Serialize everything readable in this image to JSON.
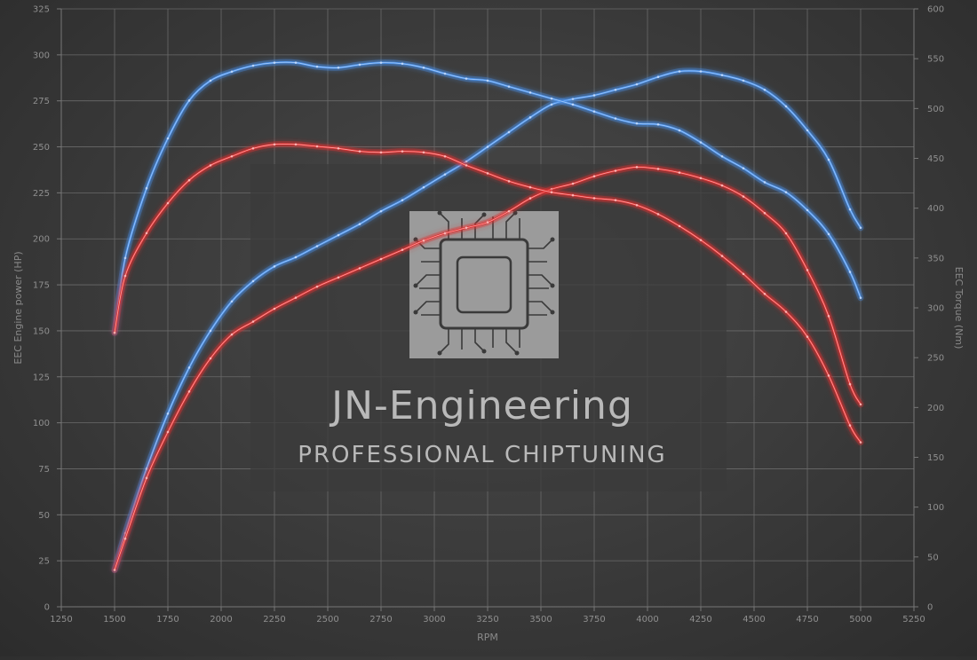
{
  "watermark": {
    "title": "JN-Engineering",
    "subtitle": "PROFESSIONAL CHIPTUNING"
  },
  "chart_data": {
    "type": "line",
    "title": "",
    "xlabel": "RPM",
    "ylabel_left": "EEC Engine power (HP)",
    "ylabel_right": "EEC Torque (Nm)",
    "xlim": [
      1250,
      5250
    ],
    "ylim_left": [
      0,
      325
    ],
    "ylim_right": [
      0,
      600
    ],
    "x_ticks": [
      1250,
      1500,
      1750,
      2000,
      2250,
      2500,
      2750,
      3000,
      3250,
      3500,
      3750,
      4000,
      4250,
      4500,
      4750,
      5000,
      5250
    ],
    "y_ticks_left": [
      0,
      25,
      50,
      75,
      100,
      125,
      150,
      175,
      200,
      225,
      250,
      275,
      300,
      325
    ],
    "y_ticks_right": [
      0,
      50,
      100,
      150,
      200,
      250,
      300,
      350,
      400,
      450,
      500,
      550,
      600
    ],
    "grid": true,
    "series": [
      {
        "axis": "left",
        "color": "#4a90e8",
        "x": [
          1500,
          1550,
          1650,
          1750,
          1850,
          1950,
          2050,
          2150,
          2250,
          2350,
          2450,
          2550,
          2650,
          2750,
          2850,
          2950,
          3050,
          3150,
          3250,
          3350,
          3450,
          3550,
          3650,
          3750,
          3850,
          3950,
          4050,
          4150,
          4250,
          4350,
          4450,
          4550,
          4650,
          4750,
          4850,
          4950,
          5000
        ],
        "y": [
          20,
          40,
          75,
          105,
          130,
          150,
          166,
          177,
          185,
          190,
          196,
          202,
          208,
          215,
          221,
          228,
          235,
          242,
          250,
          258,
          266,
          273,
          276,
          278,
          281,
          284,
          288,
          291,
          291,
          289,
          286,
          281,
          272,
          259,
          243,
          216,
          206
        ]
      },
      {
        "axis": "left",
        "color": "#e03030",
        "x": [
          1500,
          1550,
          1650,
          1750,
          1850,
          1950,
          2050,
          2150,
          2250,
          2350,
          2450,
          2550,
          2650,
          2750,
          2850,
          2950,
          3050,
          3150,
          3250,
          3350,
          3450,
          3550,
          3650,
          3750,
          3850,
          3950,
          4050,
          4150,
          4250,
          4350,
          4450,
          4550,
          4650,
          4750,
          4850,
          4950,
          5000
        ],
        "y": [
          20,
          37,
          70,
          95,
          117,
          135,
          148,
          155,
          162,
          168,
          174,
          179,
          184,
          189,
          194,
          199,
          203,
          206,
          209,
          215,
          222,
          227,
          230,
          234,
          237,
          239,
          238,
          236,
          233,
          229,
          223,
          214,
          203,
          183,
          158,
          121,
          110
        ]
      },
      {
        "axis": "right",
        "color": "#4a90e8",
        "x": [
          1500,
          1550,
          1650,
          1750,
          1850,
          1950,
          2050,
          2150,
          2250,
          2350,
          2450,
          2550,
          2650,
          2750,
          2850,
          2950,
          3050,
          3150,
          3250,
          3350,
          3450,
          3550,
          3650,
          3750,
          3850,
          3950,
          4050,
          4150,
          4250,
          4350,
          4450,
          4550,
          4650,
          4750,
          4850,
          4950,
          5000
        ],
        "y": [
          275,
          350,
          420,
          470,
          508,
          528,
          537,
          543,
          546,
          546,
          542,
          541,
          544,
          546,
          545,
          541,
          535,
          530,
          528,
          522,
          516,
          510,
          504,
          497,
          490,
          485,
          484,
          478,
          466,
          452,
          440,
          426,
          416,
          398,
          374,
          336,
          310
        ]
      },
      {
        "axis": "right",
        "color": "#e03030",
        "x": [
          1500,
          1550,
          1650,
          1750,
          1850,
          1950,
          2050,
          2150,
          2250,
          2350,
          2450,
          2550,
          2650,
          2750,
          2850,
          2950,
          3050,
          3150,
          3250,
          3350,
          3450,
          3550,
          3650,
          3750,
          3850,
          3950,
          4050,
          4150,
          4250,
          4350,
          4450,
          4550,
          4650,
          4750,
          4850,
          4950,
          5000
        ],
        "y": [
          275,
          332,
          375,
          405,
          428,
          443,
          452,
          460,
          464,
          464,
          462,
          460,
          457,
          456,
          457,
          456,
          452,
          443,
          435,
          427,
          421,
          416,
          413,
          410,
          408,
          403,
          394,
          382,
          368,
          352,
          334,
          314,
          296,
          271,
          232,
          182,
          165
        ]
      }
    ]
  }
}
